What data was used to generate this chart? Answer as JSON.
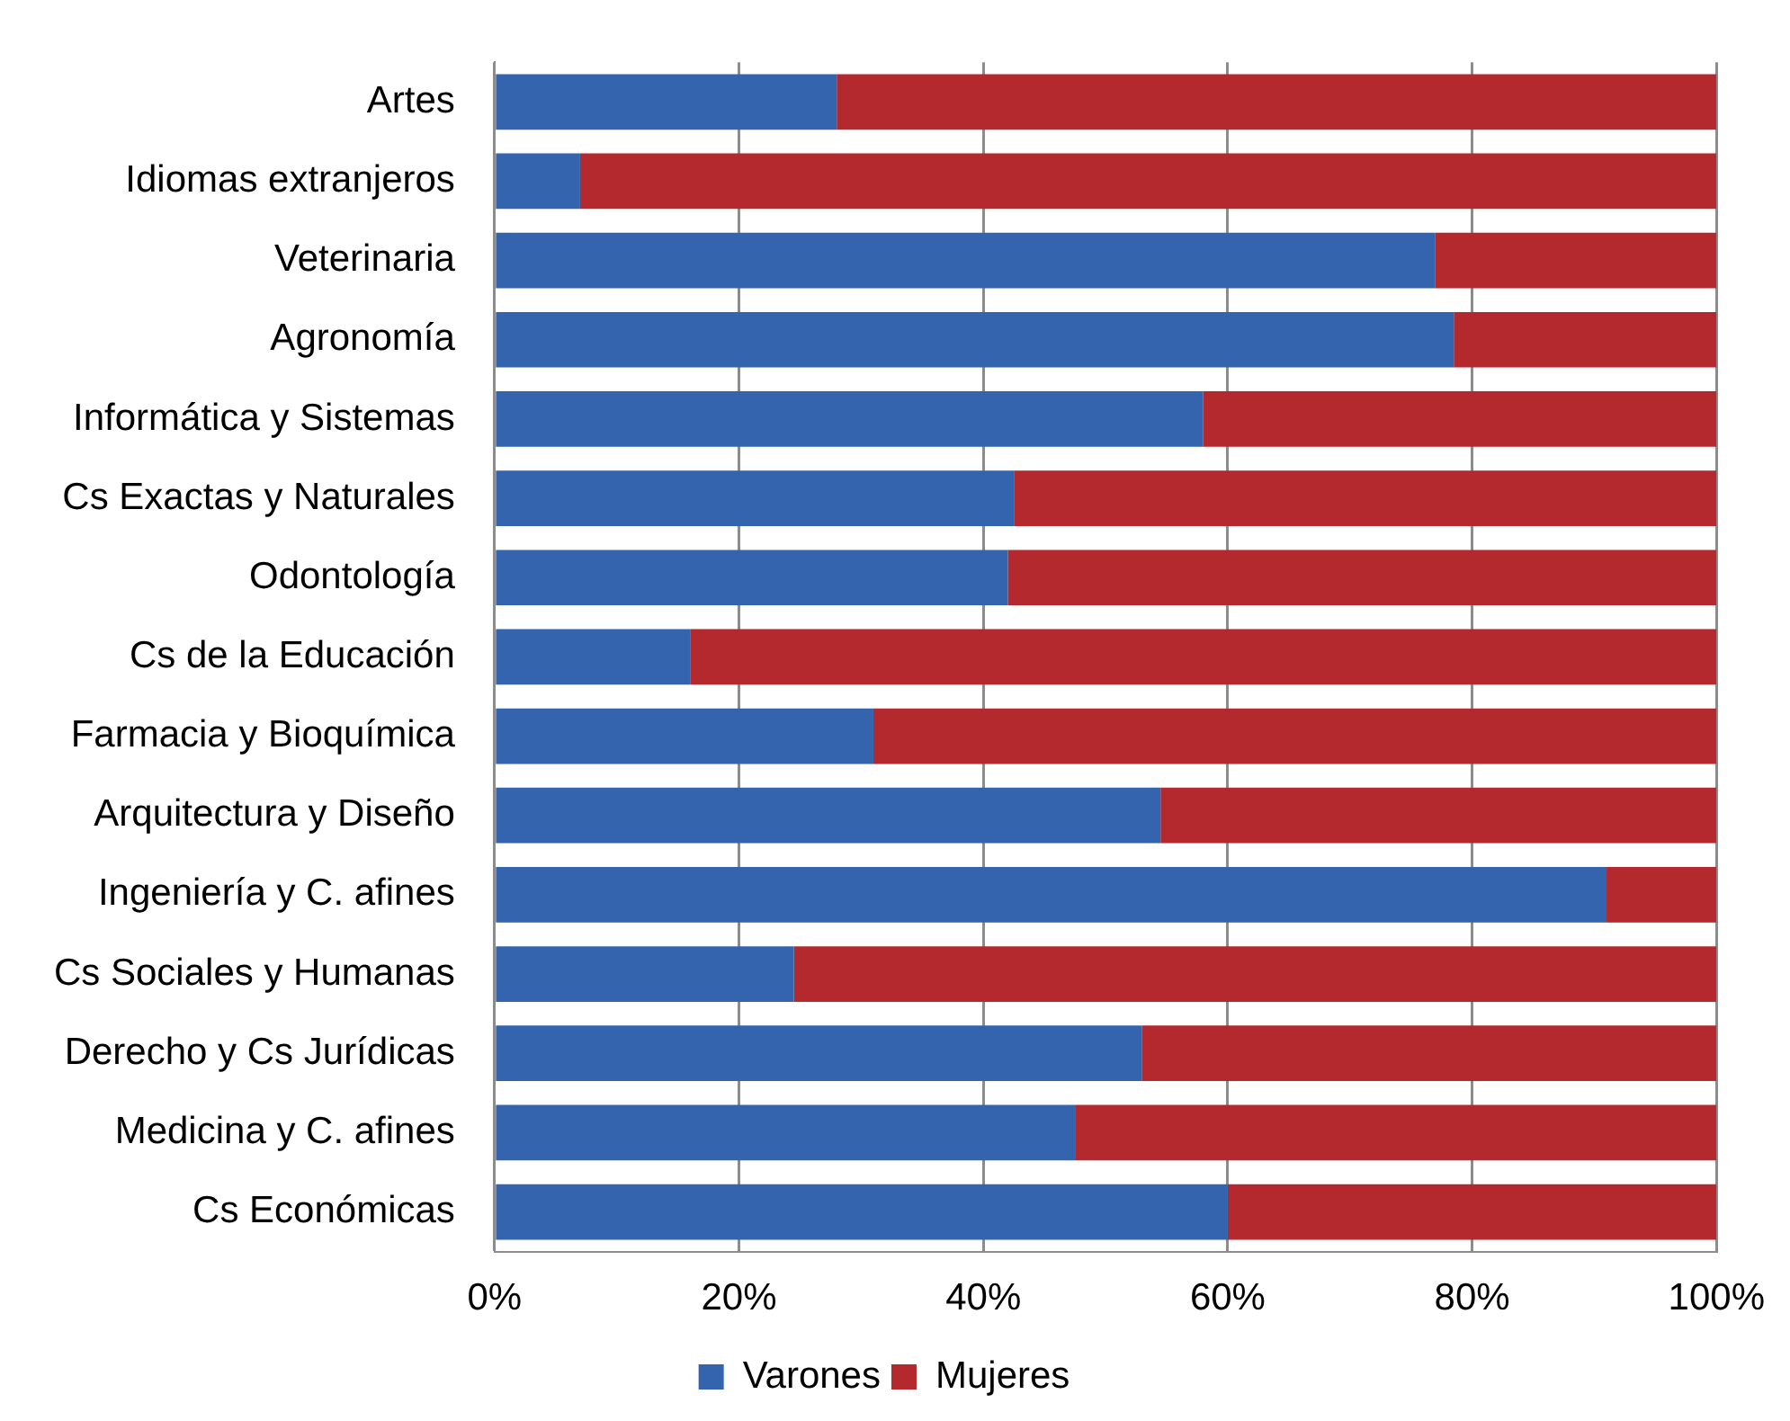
{
  "chart_data": {
    "type": "bar",
    "orientation": "horizontal",
    "stacked": true,
    "categories": [
      "Artes",
      "Idiomas extranjeros",
      "Veterinaria",
      "Agronomía",
      "Informática y Sistemas",
      "Cs Exactas y Naturales",
      "Odontología",
      "Cs de la Educación",
      "Farmacia y Bioquímica",
      "Arquitectura y Diseño",
      "Ingeniería y C. afines",
      "Cs Sociales y Humanas",
      "Derecho y Cs Jurídicas",
      "Medicina y C. afines",
      "Cs Económicas"
    ],
    "series": [
      {
        "name": "Varones",
        "color": "#3464ad",
        "values": [
          28,
          7,
          77,
          78.5,
          58,
          42.5,
          42,
          16,
          31,
          54.5,
          91,
          24.5,
          53,
          47.5,
          60
        ]
      },
      {
        "name": "Mujeres",
        "color": "#b3292e",
        "values": [
          72,
          93,
          23,
          21.5,
          42,
          57.5,
          58,
          84,
          69,
          45.5,
          9,
          75.5,
          47,
          52.5,
          40
        ]
      }
    ],
    "xlim": [
      0,
      100
    ],
    "xticks": [
      {
        "value": 0,
        "label": "0%"
      },
      {
        "value": 20,
        "label": "20%"
      },
      {
        "value": 40,
        "label": "40%"
      },
      {
        "value": 60,
        "label": "60%"
      },
      {
        "value": 80,
        "label": "80%"
      },
      {
        "value": 100,
        "label": "100%"
      }
    ],
    "grid": "x",
    "legend": "bottom"
  }
}
